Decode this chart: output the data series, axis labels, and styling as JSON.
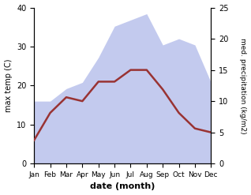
{
  "months": [
    "Jan",
    "Feb",
    "Mar",
    "Apr",
    "May",
    "Jun",
    "Jul",
    "Aug",
    "Sep",
    "Oct",
    "Nov",
    "Dec"
  ],
  "temp": [
    6,
    13,
    17,
    16,
    21,
    21,
    24,
    24,
    19,
    13,
    9,
    8
  ],
  "precip": [
    10,
    10,
    12,
    13,
    17,
    22,
    23,
    24,
    19,
    20,
    19,
    13
  ],
  "temp_color": "#993333",
  "precip_color_fill": "#aab4e8",
  "title": "",
  "xlabel": "date (month)",
  "ylabel_left": "max temp (C)",
  "ylabel_right": "med. precipitation (kg/m2)",
  "ylim_left": [
    0,
    40
  ],
  "ylim_right": [
    0,
    25
  ],
  "yticks_left": [
    0,
    10,
    20,
    30,
    40
  ],
  "yticks_right": [
    0,
    5,
    10,
    15,
    20,
    25
  ],
  "background_color": "#ffffff"
}
